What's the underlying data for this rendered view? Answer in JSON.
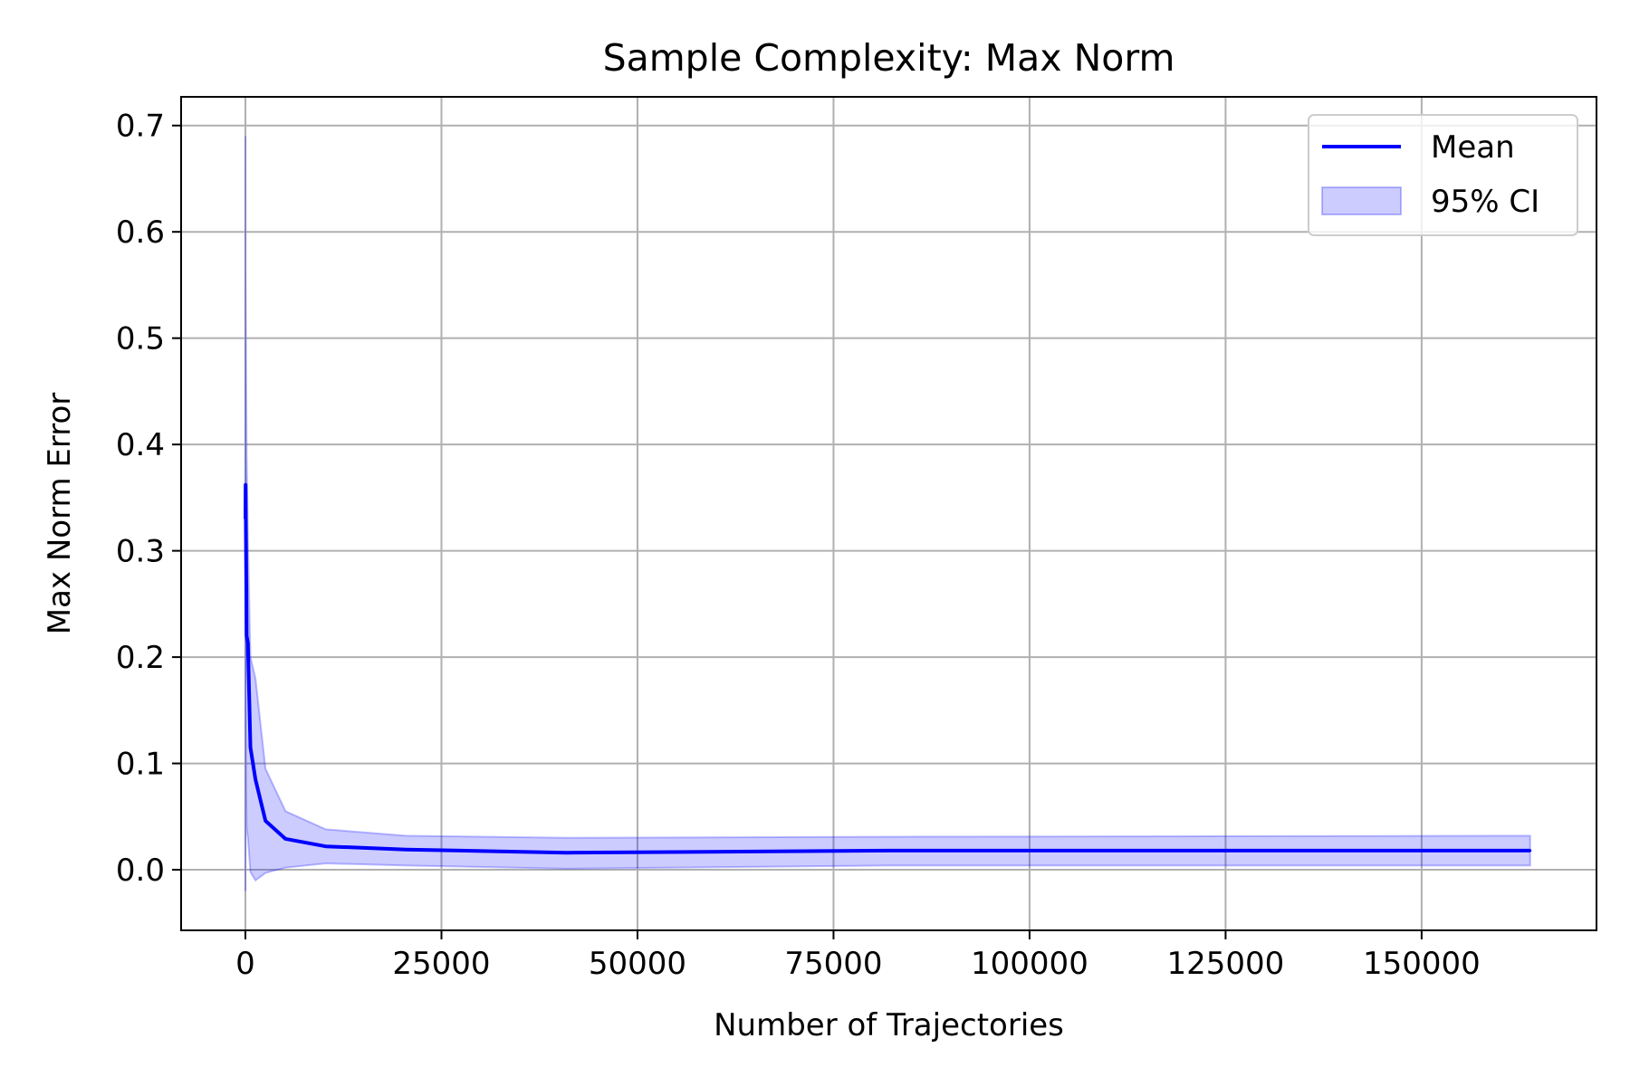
{
  "chart_data": {
    "type": "line",
    "title": "Sample Complexity: Max Norm",
    "xlabel": "Number of Trajectories",
    "ylabel": "Max Norm Error",
    "xlim": [
      -8200,
      172300
    ],
    "ylim": [
      -0.057,
      0.727
    ],
    "grid": true,
    "legend_position": "top-right",
    "x_ticks": [
      0,
      25000,
      50000,
      75000,
      100000,
      125000,
      150000
    ],
    "x_tick_labels": [
      "0",
      "25000",
      "50000",
      "75000",
      "100000",
      "125000",
      "150000"
    ],
    "y_ticks": [
      0.0,
      0.1,
      0.2,
      0.3,
      0.4,
      0.5,
      0.6,
      0.7
    ],
    "y_tick_labels": [
      "0.0",
      "0.1",
      "0.2",
      "0.3",
      "0.4",
      "0.5",
      "0.6",
      "0.7"
    ],
    "x": [
      10,
      20,
      40,
      80,
      160,
      320,
      640,
      1280,
      2560,
      5120,
      10240,
      20480,
      40960,
      81920,
      163840
    ],
    "series": [
      {
        "name": "Mean",
        "color": "#0000ff",
        "values": [
          0.33,
          0.362,
          0.345,
          0.3,
          0.22,
          0.213,
          0.115,
          0.085,
          0.046,
          0.029,
          0.022,
          0.019,
          0.016,
          0.018,
          0.018
        ]
      }
    ],
    "ci": {
      "name": "95% CI",
      "color": "#0000ff",
      "opacity": 0.2,
      "lower": [
        -0.02,
        0.15,
        0.14,
        0.08,
        0.04,
        0.03,
        -0.002,
        -0.01,
        -0.003,
        0.002,
        0.006,
        0.004,
        0.001,
        0.004,
        0.004
      ],
      "upper": [
        0.69,
        0.56,
        0.54,
        0.48,
        0.39,
        0.31,
        0.2,
        0.18,
        0.095,
        0.055,
        0.038,
        0.032,
        0.03,
        0.031,
        0.032
      ]
    }
  }
}
